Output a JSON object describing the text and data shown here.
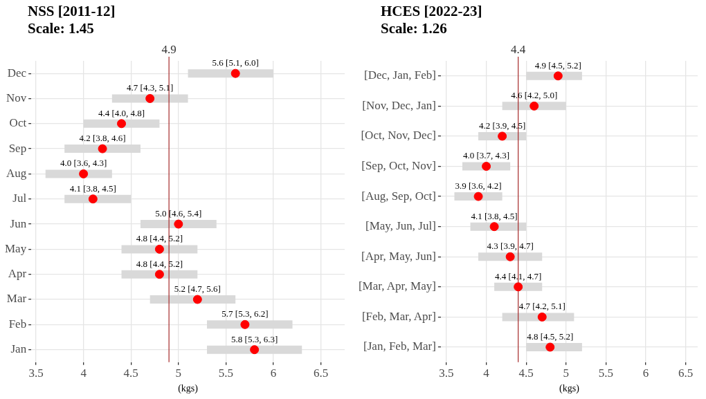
{
  "chart_data": [
    {
      "type": "scatter",
      "title": "NSS [2011-12]",
      "subtitle": "Scale: 1.45",
      "xlabel": "(kgs)",
      "orientation": "horizontal",
      "marker": "circle",
      "grid": true,
      "color": "#ff0000",
      "categories": [
        "Dec",
        "Nov",
        "Oct",
        "Sep",
        "Aug",
        "Jul",
        "Jun",
        "May",
        "Apr",
        "Mar",
        "Feb",
        "Jan"
      ],
      "values": [
        5.6,
        4.7,
        4.4,
        4.2,
        4.0,
        4.1,
        5.0,
        4.8,
        4.8,
        5.2,
        5.7,
        5.8
      ],
      "errors": [
        [
          5.1,
          6.0
        ],
        [
          4.3,
          5.1
        ],
        [
          4.0,
          4.8
        ],
        [
          3.8,
          4.6
        ],
        [
          3.6,
          4.3
        ],
        [
          3.8,
          4.5
        ],
        [
          4.6,
          5.4
        ],
        [
          4.4,
          5.2
        ],
        [
          4.4,
          5.2
        ],
        [
          4.7,
          5.6
        ],
        [
          5.3,
          6.2
        ],
        [
          5.3,
          6.3
        ]
      ],
      "value_labels": [
        "5.6 [5.1, 6.0]",
        "4.7 [4.3, 5.1]",
        "4.4 [4.0, 4.8]",
        "4.2 [3.8, 4.6]",
        "4.0 [3.6, 4.3]",
        "4.1 [3.8, 4.5]",
        "5.0 [4.6, 5.4]",
        "4.8 [4.4, 5.2]",
        "4.8 [4.4, 5.2]",
        "5.2 [4.7, 5.6]",
        "5.7 [5.3, 6.2]",
        "5.8 [5.3, 6.3]"
      ],
      "xlim": [
        3.45,
        6.75
      ],
      "xticks": [
        3.5,
        4,
        4.5,
        5,
        5.5,
        6,
        6.5
      ],
      "ref_lines": [
        {
          "axis": "x",
          "value": 4.9,
          "label": "4.9",
          "color": "#a52a2a"
        }
      ]
    },
    {
      "type": "scatter",
      "title": "HCES [2022-23]",
      "subtitle": "Scale: 1.26",
      "xlabel": "(kgs)",
      "orientation": "horizontal",
      "marker": "circle",
      "grid": true,
      "color": "#ff0000",
      "categories": [
        "[Dec, Jan, Feb]",
        "[Nov, Dec, Jan]",
        "[Oct, Nov, Dec]",
        "[Sep, Oct, Nov]",
        "[Aug, Sep, Oct]",
        "[May, Jun, Jul]",
        "[Apr, May, Jun]",
        "[Mar, Apr, May]",
        "[Feb, Mar, Apr]",
        "[Jan, Feb, Mar]"
      ],
      "values": [
        4.9,
        4.6,
        4.2,
        4.0,
        3.9,
        4.1,
        4.3,
        4.4,
        4.7,
        4.8
      ],
      "errors": [
        [
          4.5,
          5.2
        ],
        [
          4.2,
          5.0
        ],
        [
          3.9,
          4.5
        ],
        [
          3.7,
          4.3
        ],
        [
          3.6,
          4.2
        ],
        [
          3.8,
          4.5
        ],
        [
          3.9,
          4.7
        ],
        [
          4.1,
          4.7
        ],
        [
          4.2,
          5.1
        ],
        [
          4.5,
          5.2
        ]
      ],
      "value_labels": [
        "4.9 [4.5, 5.2]",
        "4.6 [4.2, 5.0]",
        "4.2 [3.9, 4.5]",
        "4.0 [3.7, 4.3]",
        "3.9 [3.6, 4.2]",
        "4.1 [3.8, 4.5]",
        "4.3 [3.9, 4.7]",
        "4.4 [4.1, 4.7]",
        "4.7 [4.2, 5.1]",
        "4.8 [4.5, 5.2]"
      ],
      "xlim": [
        3.43,
        6.65
      ],
      "xticks": [
        3.5,
        4,
        4.5,
        5,
        5.5,
        6,
        6.5
      ],
      "ref_lines": [
        {
          "axis": "x",
          "value": 4.4,
          "label": "4.4",
          "color": "#a52a2a"
        }
      ]
    }
  ]
}
